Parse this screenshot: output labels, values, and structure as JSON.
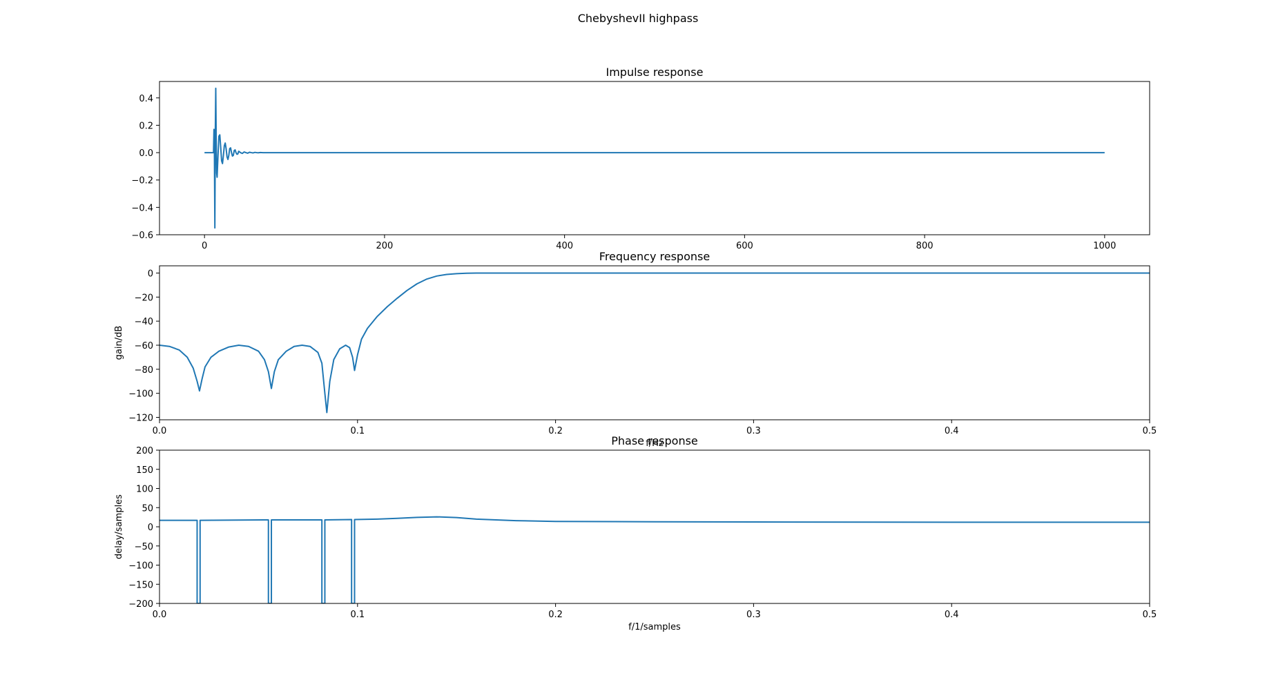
{
  "suptitle": "ChebyshevII highpass",
  "line_color": "#1f77b4",
  "chart_data": [
    {
      "type": "line",
      "title": "Impulse response",
      "xlabel": "",
      "ylabel": "",
      "xlim": [
        -50,
        1050
      ],
      "ylim": [
        -0.6,
        0.52
      ],
      "xticks": [
        0,
        200,
        400,
        600,
        800,
        1000
      ],
      "xtick_labels": [
        "0",
        "200",
        "400",
        "600",
        "800",
        "1000"
      ],
      "yticks": [
        0.4,
        0.2,
        0.0,
        -0.2,
        -0.4,
        -0.6
      ],
      "ytick_labels": [
        "0.4",
        "0.2",
        "0.0",
        "−0.2",
        "−0.4",
        "−0.6"
      ],
      "grid": false,
      "series": [
        {
          "x": [
            0,
            10,
            10.5,
            11,
            11.5,
            12,
            12.5,
            13,
            13.5,
            14,
            15,
            16,
            17,
            18,
            19,
            20,
            21,
            22,
            23,
            24,
            25,
            26,
            27,
            28,
            29,
            30,
            31,
            32,
            33,
            34,
            35,
            36,
            37,
            38,
            40,
            42,
            44,
            46,
            48,
            50,
            52,
            54,
            56,
            58,
            60,
            62,
            65,
            70,
            80,
            1000
          ],
          "y": [
            0,
            0,
            0.17,
            0.0,
            -0.55,
            0.15,
            0.47,
            0.1,
            -0.15,
            -0.18,
            -0.02,
            0.12,
            0.13,
            0.04,
            -0.06,
            -0.08,
            -0.02,
            0.05,
            0.07,
            0.03,
            -0.03,
            -0.05,
            -0.02,
            0.03,
            0.035,
            0.0,
            -0.025,
            -0.02,
            0.015,
            0.02,
            0.0,
            -0.012,
            -0.01,
            0.01,
            0.0,
            -0.006,
            0.005,
            0.0,
            -0.004,
            0.003,
            0.0,
            -0.002,
            0.002,
            0.0,
            -0.001,
            0.001,
            0.0,
            0.0,
            0.0,
            0.0
          ]
        }
      ]
    },
    {
      "type": "line",
      "title": "Frequency response",
      "xlabel": "f/Hz",
      "ylabel": "gain/dB",
      "xlim": [
        0.0,
        0.5
      ],
      "ylim": [
        -122,
        6
      ],
      "xticks": [
        0.0,
        0.1,
        0.2,
        0.3,
        0.4,
        0.5
      ],
      "xtick_labels": [
        "0.0",
        "0.1",
        "0.2",
        "0.3",
        "0.4",
        "0.5"
      ],
      "yticks": [
        0,
        -20,
        -40,
        -60,
        -80,
        -100,
        -120
      ],
      "ytick_labels": [
        "0",
        "−20",
        "−40",
        "−60",
        "−80",
        "−100",
        "−120"
      ],
      "grid": false,
      "series": [
        {
          "x": [
            0.0,
            0.005,
            0.01,
            0.014,
            0.017,
            0.019,
            0.0202,
            0.0215,
            0.023,
            0.026,
            0.03,
            0.035,
            0.04,
            0.045,
            0.05,
            0.053,
            0.055,
            0.0565,
            0.058,
            0.06,
            0.064,
            0.068,
            0.072,
            0.076,
            0.08,
            0.082,
            0.0835,
            0.0845,
            0.086,
            0.088,
            0.091,
            0.094,
            0.096,
            0.0975,
            0.0985,
            0.1,
            0.102,
            0.105,
            0.11,
            0.115,
            0.12,
            0.125,
            0.13,
            0.135,
            0.14,
            0.145,
            0.15,
            0.155,
            0.16,
            0.17,
            0.2,
            0.3,
            0.4,
            0.5
          ],
          "y": [
            -60,
            -61,
            -64,
            -70,
            -79,
            -90,
            -98,
            -88,
            -78,
            -70,
            -65,
            -61.5,
            -60,
            -61,
            -65,
            -72,
            -82,
            -96,
            -82,
            -72,
            -65,
            -61,
            -60,
            -61,
            -66,
            -75,
            -100,
            -116,
            -90,
            -72,
            -63,
            -60,
            -62,
            -70,
            -81,
            -68,
            -55,
            -46,
            -36,
            -28,
            -21,
            -14.5,
            -9,
            -5,
            -2.5,
            -1.2,
            -0.5,
            -0.2,
            -0.05,
            0,
            0,
            0,
            0,
            0
          ]
        }
      ]
    },
    {
      "type": "line",
      "title": "Phase response",
      "xlabel": "f/1/samples",
      "ylabel": "delay/samples",
      "xlim": [
        0.0,
        0.5
      ],
      "ylim": [
        -200,
        200
      ],
      "xticks": [
        0.0,
        0.1,
        0.2,
        0.3,
        0.4,
        0.5
      ],
      "xtick_labels": [
        "0.0",
        "0.1",
        "0.2",
        "0.3",
        "0.4",
        "0.5"
      ],
      "yticks": [
        200,
        150,
        100,
        50,
        0,
        -50,
        -100,
        -150,
        -200
      ],
      "ytick_labels": [
        "200",
        "150",
        "100",
        "50",
        "0",
        "−50",
        "−100",
        "−150",
        "−200"
      ],
      "grid": false,
      "series": [
        {
          "x": [
            0.0,
            0.019,
            0.019,
            0.0205,
            0.0205,
            0.055,
            0.055,
            0.0565,
            0.0565,
            0.082,
            0.082,
            0.0835,
            0.0835,
            0.097,
            0.097,
            0.0985,
            0.0985,
            0.11,
            0.12,
            0.13,
            0.14,
            0.15,
            0.16,
            0.18,
            0.2,
            0.25,
            0.3,
            0.4,
            0.5
          ],
          "y": [
            17,
            17,
            -200,
            -200,
            17,
            18,
            -200,
            -200,
            18,
            18,
            -200,
            -200,
            18,
            19,
            -200,
            -200,
            19,
            20,
            22,
            24.5,
            26,
            24,
            20,
            16,
            14,
            13,
            12.5,
            12,
            12
          ]
        }
      ]
    }
  ]
}
